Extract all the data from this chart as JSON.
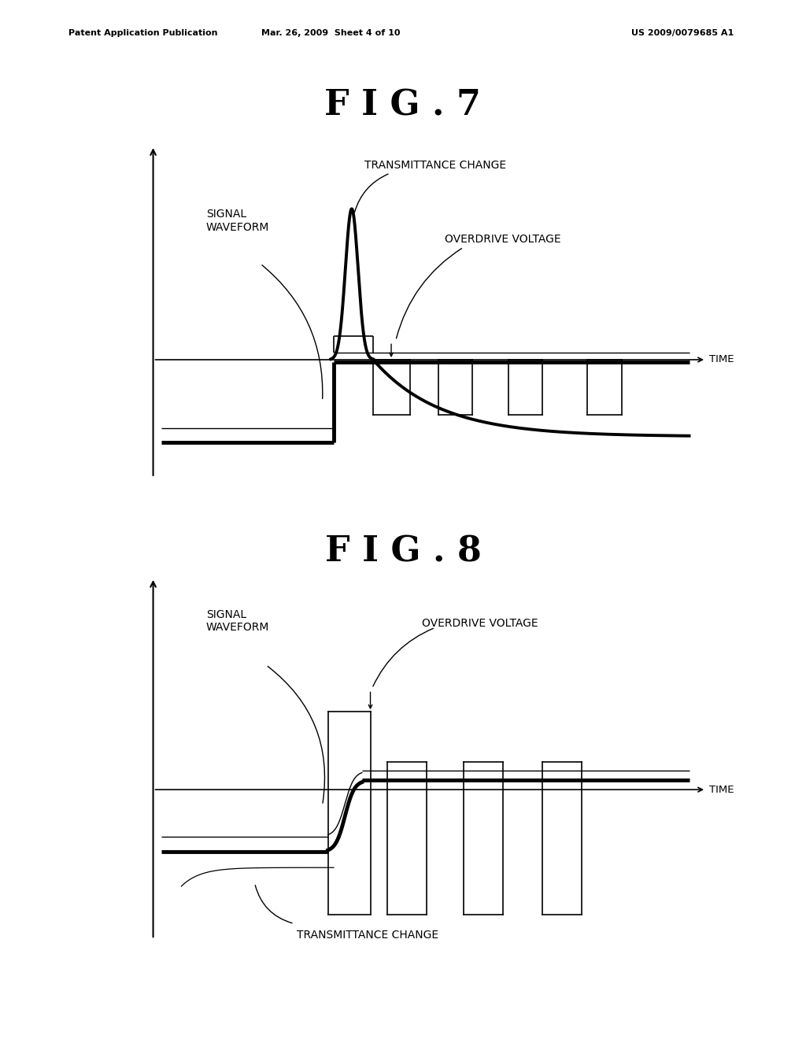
{
  "bg_color": "#ffffff",
  "fig_width": 10.24,
  "fig_height": 13.2,
  "header_left": "Patent Application Publication",
  "header_center": "Mar. 26, 2009  Sheet 4 of 10",
  "header_right": "US 2009/0079685 A1",
  "fig7_title": "F I G . 7",
  "fig8_title": "F I G . 8",
  "label_signal_waveform": "SIGNAL\nWAVEFORM",
  "label_transmittance_change": "TRANSMITTANCE CHANGE",
  "label_overdrive_voltage": "OVERDRIVE VOLTAGE",
  "label_time": "TIME"
}
